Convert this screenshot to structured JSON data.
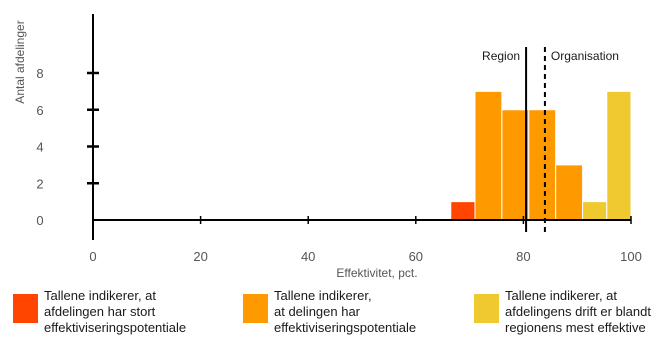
{
  "chart_data": {
    "type": "bar",
    "xlabel": "Effektivitet, pct.",
    "ylabel": "Antal afdelinger",
    "xlim": [
      0,
      100
    ],
    "ylim": [
      0,
      8
    ],
    "x_ticks": [
      0,
      20,
      40,
      60,
      80,
      100
    ],
    "y_ticks": [
      0,
      2,
      4,
      6,
      8
    ],
    "bars": [
      {
        "x0": 66.5,
        "x1": 71,
        "value": 1,
        "category": "large"
      },
      {
        "x0": 71,
        "x1": 76,
        "value": 7,
        "category": "medium"
      },
      {
        "x0": 76,
        "x1": 81,
        "value": 6,
        "category": "medium"
      },
      {
        "x0": 81,
        "x1": 86,
        "value": 6,
        "category": "medium"
      },
      {
        "x0": 86,
        "x1": 91,
        "value": 3,
        "category": "medium"
      },
      {
        "x0": 91,
        "x1": 95.5,
        "value": 1,
        "category": "efficient"
      },
      {
        "x0": 95.5,
        "x1": 100,
        "value": 7,
        "category": "efficient"
      }
    ],
    "reference_lines": [
      {
        "label": "Region",
        "x": 80.5,
        "style": "solid"
      },
      {
        "label": "Organisation",
        "x": 84,
        "style": "dashed"
      }
    ],
    "legend": [
      {
        "key": "large",
        "color": "#FF4500",
        "lines": [
          "Tallene indikerer, at",
          "afdelingen har stort",
          "effektiviseringspotentiale"
        ]
      },
      {
        "key": "medium",
        "color": "#FF9900",
        "lines": [
          "Tallene indikerer,",
          "at delingen har",
          "effektiviseringspotentiale"
        ]
      },
      {
        "key": "efficient",
        "color": "#F0C830",
        "lines": [
          "Tallene indikerer, at",
          "afdelingens drift er blandt",
          "regionens mest effektive"
        ]
      }
    ],
    "grid": false,
    "legend_position": "bottom"
  }
}
